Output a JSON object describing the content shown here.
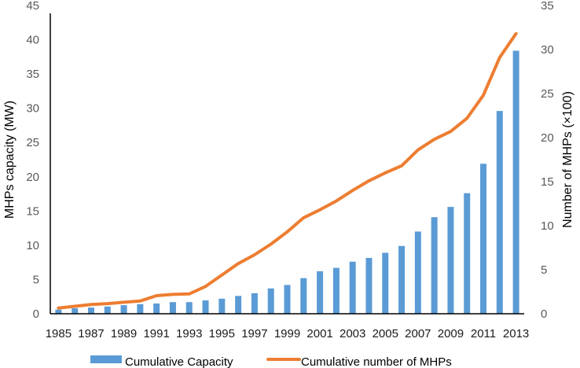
{
  "chart_data": {
    "type": "bar+line",
    "title": "",
    "xlabel": "",
    "ylabel_left": "MHPs capacity (MW)",
    "ylabel_right": "Number of MHPs (×100)",
    "ylim_left": [
      0,
      45
    ],
    "ylim_right": [
      0,
      35
    ],
    "yticks_left": [
      0,
      5,
      10,
      15,
      20,
      25,
      30,
      35,
      40,
      45
    ],
    "yticks_right": [
      0,
      5,
      10,
      15,
      20,
      25,
      30,
      35
    ],
    "categories": [
      1985,
      1986,
      1987,
      1988,
      1989,
      1990,
      1991,
      1992,
      1993,
      1994,
      1995,
      1996,
      1997,
      1998,
      1999,
      2000,
      2001,
      2002,
      2003,
      2004,
      2005,
      2006,
      2007,
      2008,
      2009,
      2010,
      2011,
      2012,
      2013
    ],
    "xtick_labels": [
      "1985",
      "1987",
      "1989",
      "1991",
      "1993",
      "1995",
      "1997",
      "1999",
      "2001",
      "2003",
      "2005",
      "2007",
      "2009",
      "2011",
      "2013"
    ],
    "grid": false,
    "legend_position": "bottom",
    "series": [
      {
        "name": "Cumulative Capacity",
        "type": "bar",
        "axis": "left",
        "color": "#5B9BD5",
        "values": [
          0.6,
          0.8,
          0.9,
          1.05,
          1.25,
          1.4,
          1.5,
          1.7,
          1.7,
          1.95,
          2.2,
          2.6,
          3.0,
          3.7,
          4.2,
          5.2,
          6.2,
          6.7,
          7.6,
          8.15,
          8.9,
          9.9,
          12.0,
          14.1,
          15.6,
          17.6,
          21.9,
          29.6,
          38.4
        ]
      },
      {
        "name": "Cumulative number of MHPs",
        "type": "line",
        "axis": "right",
        "color": "#ED7D31",
        "values": [
          0.65,
          0.85,
          1.05,
          1.15,
          1.3,
          1.45,
          2.05,
          2.2,
          2.25,
          3.1,
          4.4,
          5.7,
          6.7,
          7.9,
          9.3,
          10.9,
          11.8,
          12.8,
          14.0,
          15.1,
          16.0,
          16.8,
          18.6,
          19.8,
          20.7,
          22.2,
          24.8,
          29.1,
          31.8
        ]
      }
    ]
  }
}
